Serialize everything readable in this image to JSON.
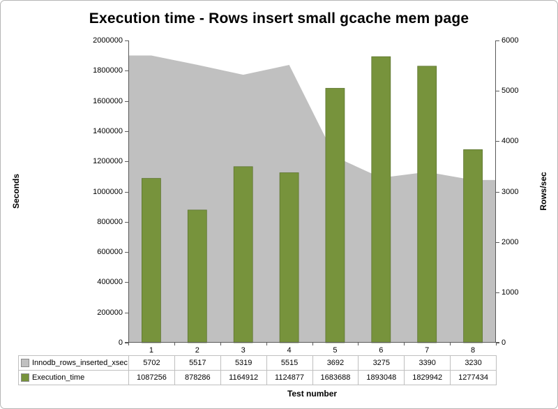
{
  "title": "Execution time - Rows insert small gcache mem page",
  "left_axis": {
    "label": "Seconds",
    "min": 0,
    "max": 2000000,
    "step": 200000
  },
  "right_axis": {
    "label": "Rows/sec",
    "min": 0,
    "max": 6000,
    "step": 1000
  },
  "x_axis": {
    "label": "Test number",
    "categories": [
      "1",
      "2",
      "3",
      "4",
      "5",
      "6",
      "7",
      "8"
    ]
  },
  "colors": {
    "bar": "#77933C",
    "bar_border": "#5E7530",
    "area": "#C0C0C0",
    "axis_line": "#595959",
    "table_border": "#bfbfbf"
  },
  "chart_data": {
    "type": "combo",
    "title": "Execution time - Rows insert small gcache mem page",
    "xlabel": "Test number",
    "ylabel_left": "Seconds",
    "ylabel_right": "Rows/sec",
    "ylim_left": [
      0,
      2000000
    ],
    "ylim_right": [
      0,
      6000
    ],
    "grid": false,
    "legend_position": "data-table-below-plot",
    "categories": [
      "1",
      "2",
      "3",
      "4",
      "5",
      "6",
      "7",
      "8"
    ],
    "series": [
      {
        "name": "Innodb_rows_inserted_xsec",
        "type": "area",
        "axis": "right",
        "color": "#C0C0C0",
        "values": [
          5702,
          5517,
          5319,
          5515,
          3692,
          3275,
          3390,
          3230
        ]
      },
      {
        "name": "Execution_time",
        "type": "bar",
        "axis": "left",
        "color": "#77933C",
        "values": [
          1087256,
          878286,
          1164912,
          1124877,
          1683688,
          1893048,
          1829942,
          1277434
        ]
      }
    ]
  }
}
